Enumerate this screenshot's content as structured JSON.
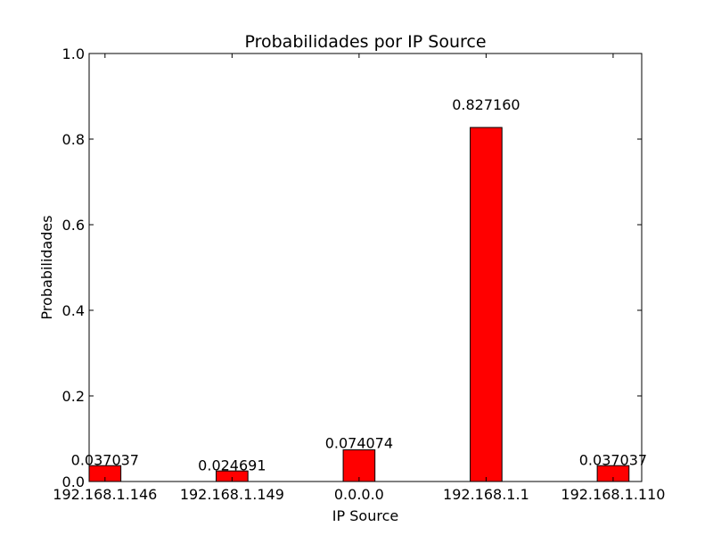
{
  "chart_data": {
    "type": "bar",
    "title": "Probabilidades por IP Source",
    "xlabel": "IP Source",
    "ylabel": "Probabilidades",
    "categories": [
      "192.168.1.146",
      "192.168.1.149",
      "0.0.0.0",
      "192.168.1.1",
      "192.168.1.110"
    ],
    "values": [
      0.037037,
      0.024691,
      0.074074,
      0.82716,
      0.037037
    ],
    "data_labels": [
      "0.037037",
      "0.024691",
      "0.074074",
      "0.827160",
      "0.037037"
    ],
    "ylim": [
      0,
      1
    ],
    "yticks": [
      0,
      0.2,
      0.4,
      0.6,
      0.8,
      1
    ],
    "ytick_labels": [
      "0.0",
      "0.2",
      "0.4",
      "0.6",
      "0.8",
      "1.0"
    ],
    "grid": false,
    "legend": "none",
    "bar_color": "#ff0000",
    "edge_color": "#000000"
  }
}
